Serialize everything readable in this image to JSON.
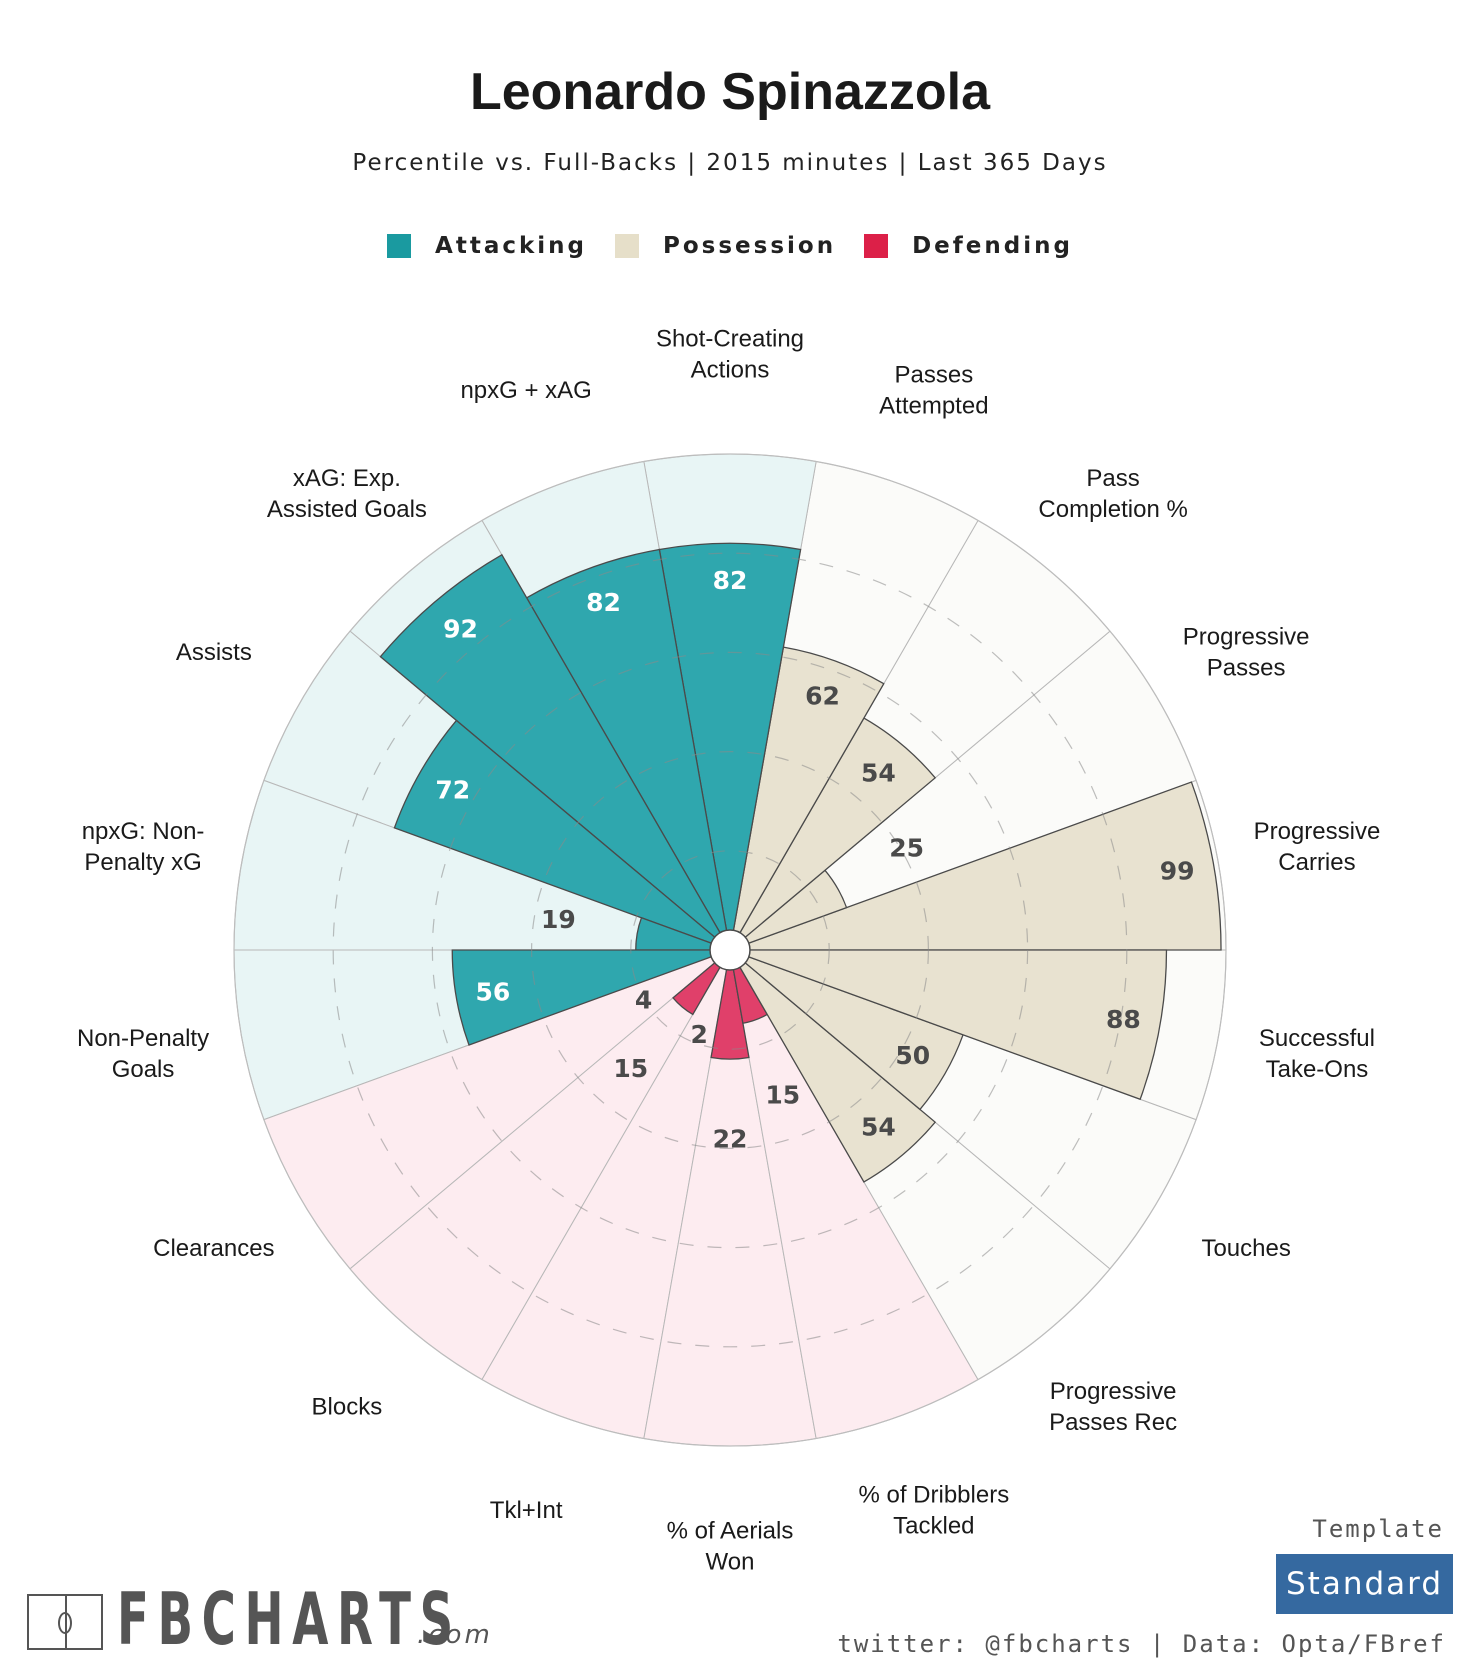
{
  "header": {
    "title": "Leonardo Spinazzola",
    "subtitle": "Percentile vs. Full-Backs | 2015 minutes | Last 365 Days"
  },
  "legend": [
    {
      "label": "Attacking",
      "color": "#1a9aa0"
    },
    {
      "label": "Possession",
      "color": "#e6dfc9"
    },
    {
      "label": "Defending",
      "color": "#dc2048"
    }
  ],
  "colors": {
    "attacking_bar": "#2fa7ae",
    "attacking_bg": "#e8f5f5",
    "possession_bar": "#e8e2d0",
    "possession_bg": "#fbfbf9",
    "defending_bar": "#e0406a",
    "defending_bg": "#fdecf0"
  },
  "footer": {
    "logo_text": "FBCHARTS",
    "logo_suffix": ".com",
    "template_label": "Template",
    "template_value": "Standard",
    "credits": "twitter: @fbcharts | Data: Opta/FBref"
  },
  "chart_data": {
    "type": "pie",
    "subtype": "polar-area (pizza) percentile chart",
    "title": "Leonardo Spinazzola",
    "subtitle": "Percentile vs. Full-Backs | 2015 minutes | Last 365 Days",
    "range": [
      0,
      100
    ],
    "gridlines": [
      20,
      40,
      60,
      80
    ],
    "grid": true,
    "legend_position": "top-center",
    "direction": "counter-clockwise from 3 o'clock",
    "categories": [
      "Progressive Carries",
      "Progressive Passes",
      "Pass Completion %",
      "Passes Attempted",
      "Shot-Creating Actions",
      "npxG + xAG",
      "xAG: Exp. Assisted Goals",
      "Assists",
      "npxG: Non-Penalty xG",
      "Non-Penalty Goals",
      "Clearances",
      "Blocks",
      "Tkl+Int",
      "% of Aerials Won",
      "% of Dribblers Tackled",
      "Progressive Passes Rec",
      "Touches",
      "Successful Take-Ons"
    ],
    "label_lines": [
      [
        "Progressive",
        "Carries"
      ],
      [
        "Progressive",
        "Passes"
      ],
      [
        "Pass",
        "Completion %"
      ],
      [
        "Passes",
        "Attempted"
      ],
      [
        "Shot-Creating",
        "Actions"
      ],
      [
        "npxG + xAG"
      ],
      [
        "xAG: Exp.",
        "Assisted Goals"
      ],
      [
        "Assists"
      ],
      [
        "npxG: Non-",
        "Penalty xG"
      ],
      [
        "Non-Penalty",
        "Goals"
      ],
      [
        "Clearances"
      ],
      [
        "Blocks"
      ],
      [
        "Tkl+Int"
      ],
      [
        "% of Aerials",
        "Won"
      ],
      [
        "% of Dribblers",
        "Tackled"
      ],
      [
        "Progressive",
        "Passes Rec"
      ],
      [
        "Touches"
      ],
      [
        "Successful",
        "Take-Ons"
      ]
    ],
    "groups": [
      "Possession",
      "Possession",
      "Possession",
      "Possession",
      "Attacking",
      "Attacking",
      "Attacking",
      "Attacking",
      "Attacking",
      "Attacking",
      "Defending",
      "Defending",
      "Defending",
      "Defending",
      "Defending",
      "Possession",
      "Possession",
      "Possession"
    ],
    "values": [
      99,
      25,
      54,
      62,
      82,
      82,
      92,
      72,
      19,
      56,
      4,
      15,
      2,
      22,
      15,
      54,
      50,
      88
    ]
  }
}
